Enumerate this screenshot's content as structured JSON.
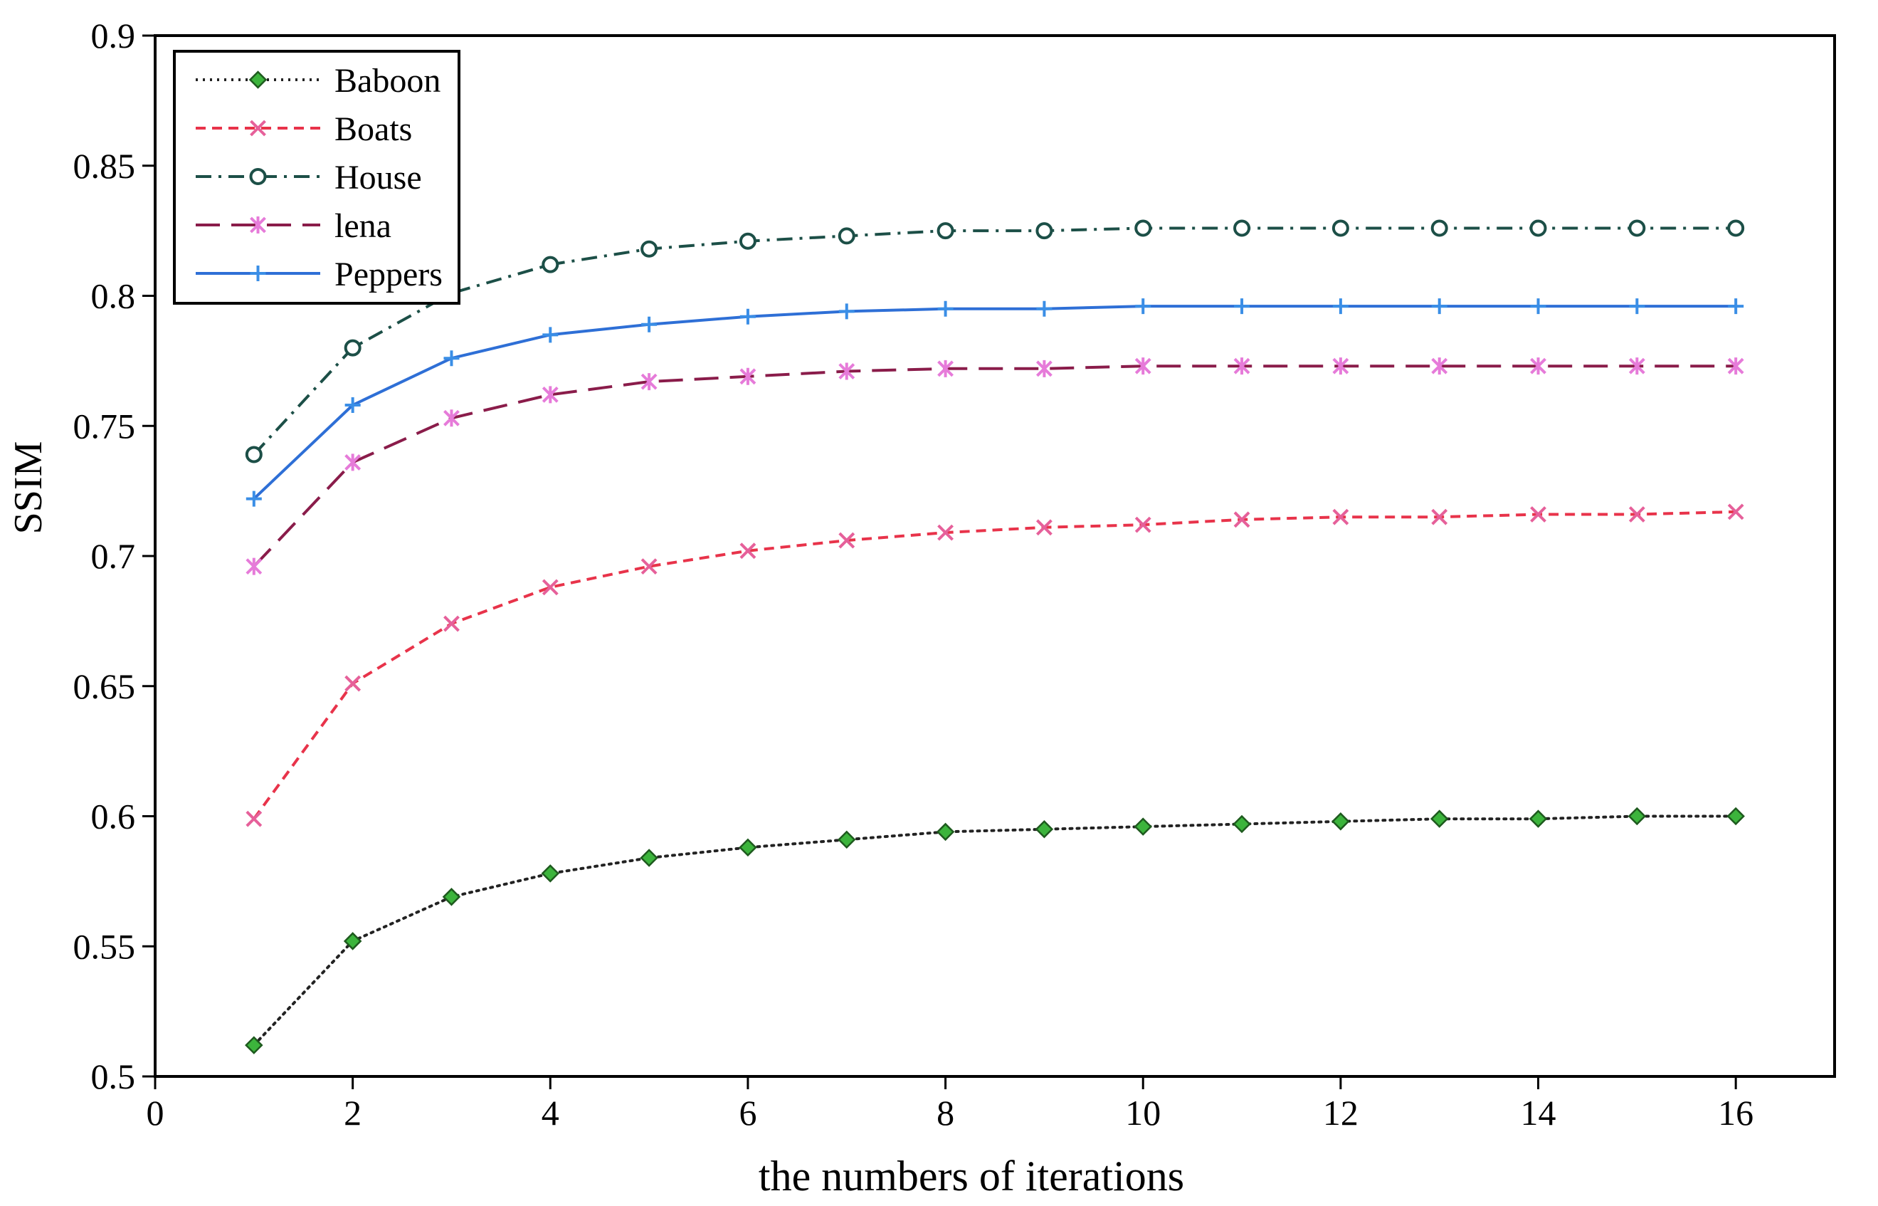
{
  "chart_data": {
    "type": "line",
    "title": "",
    "xlabel": "the numbers of iterations",
    "ylabel": "SSIM",
    "xlim": [
      0,
      17
    ],
    "ylim": [
      0.5,
      0.9
    ],
    "xticks": [
      0,
      2,
      4,
      6,
      8,
      10,
      12,
      14,
      16
    ],
    "xtick_labels": [
      "0",
      "2",
      "4",
      "6",
      "8",
      "10",
      "12",
      "14",
      "16"
    ],
    "yticks": [
      0.5,
      0.55,
      0.6,
      0.65,
      0.7,
      0.75,
      0.8,
      0.85,
      0.9
    ],
    "ytick_labels": [
      "0.5",
      "0.55",
      "0.6",
      "0.65",
      "0.7",
      "0.75",
      "0.8",
      "0.85",
      "0.9"
    ],
    "grid": false,
    "legend_position": "top-left",
    "x": [
      1,
      2,
      3,
      4,
      5,
      6,
      7,
      8,
      9,
      10,
      11,
      12,
      13,
      14,
      15,
      16
    ],
    "series": [
      {
        "name": "Baboon",
        "color": "#222222",
        "marker_color": "#3cb43c",
        "marker": "diamond",
        "dash": "dotted",
        "values": [
          0.512,
          0.552,
          0.569,
          0.578,
          0.584,
          0.588,
          0.591,
          0.594,
          0.595,
          0.596,
          0.597,
          0.598,
          0.599,
          0.599,
          0.6,
          0.6
        ]
      },
      {
        "name": "Boats",
        "color": "#e8334a",
        "marker_color": "#e6609a",
        "marker": "x",
        "dash": "dashed",
        "values": [
          0.599,
          0.651,
          0.674,
          0.688,
          0.696,
          0.702,
          0.706,
          0.709,
          0.711,
          0.712,
          0.714,
          0.715,
          0.715,
          0.716,
          0.716,
          0.717
        ]
      },
      {
        "name": "House",
        "color": "#1c4f47",
        "marker_color": "#2a8a7a",
        "marker": "circle",
        "dash": "dashdot",
        "values": [
          0.739,
          0.78,
          0.801,
          0.812,
          0.818,
          0.821,
          0.823,
          0.825,
          0.825,
          0.826,
          0.826,
          0.826,
          0.826,
          0.826,
          0.826,
          0.826
        ]
      },
      {
        "name": "lena",
        "color": "#8a1c4a",
        "marker_color": "#e67bd9",
        "marker": "asterisk",
        "dash": "longdash",
        "values": [
          0.696,
          0.736,
          0.753,
          0.762,
          0.767,
          0.769,
          0.771,
          0.772,
          0.772,
          0.773,
          0.773,
          0.773,
          0.773,
          0.773,
          0.773,
          0.773
        ]
      },
      {
        "name": "Peppers",
        "color": "#2e6fd6",
        "marker_color": "#3a8ee6",
        "marker": "plus",
        "dash": "solid",
        "values": [
          0.722,
          0.758,
          0.776,
          0.785,
          0.789,
          0.792,
          0.794,
          0.795,
          0.795,
          0.796,
          0.796,
          0.796,
          0.796,
          0.796,
          0.796,
          0.796
        ]
      }
    ]
  }
}
